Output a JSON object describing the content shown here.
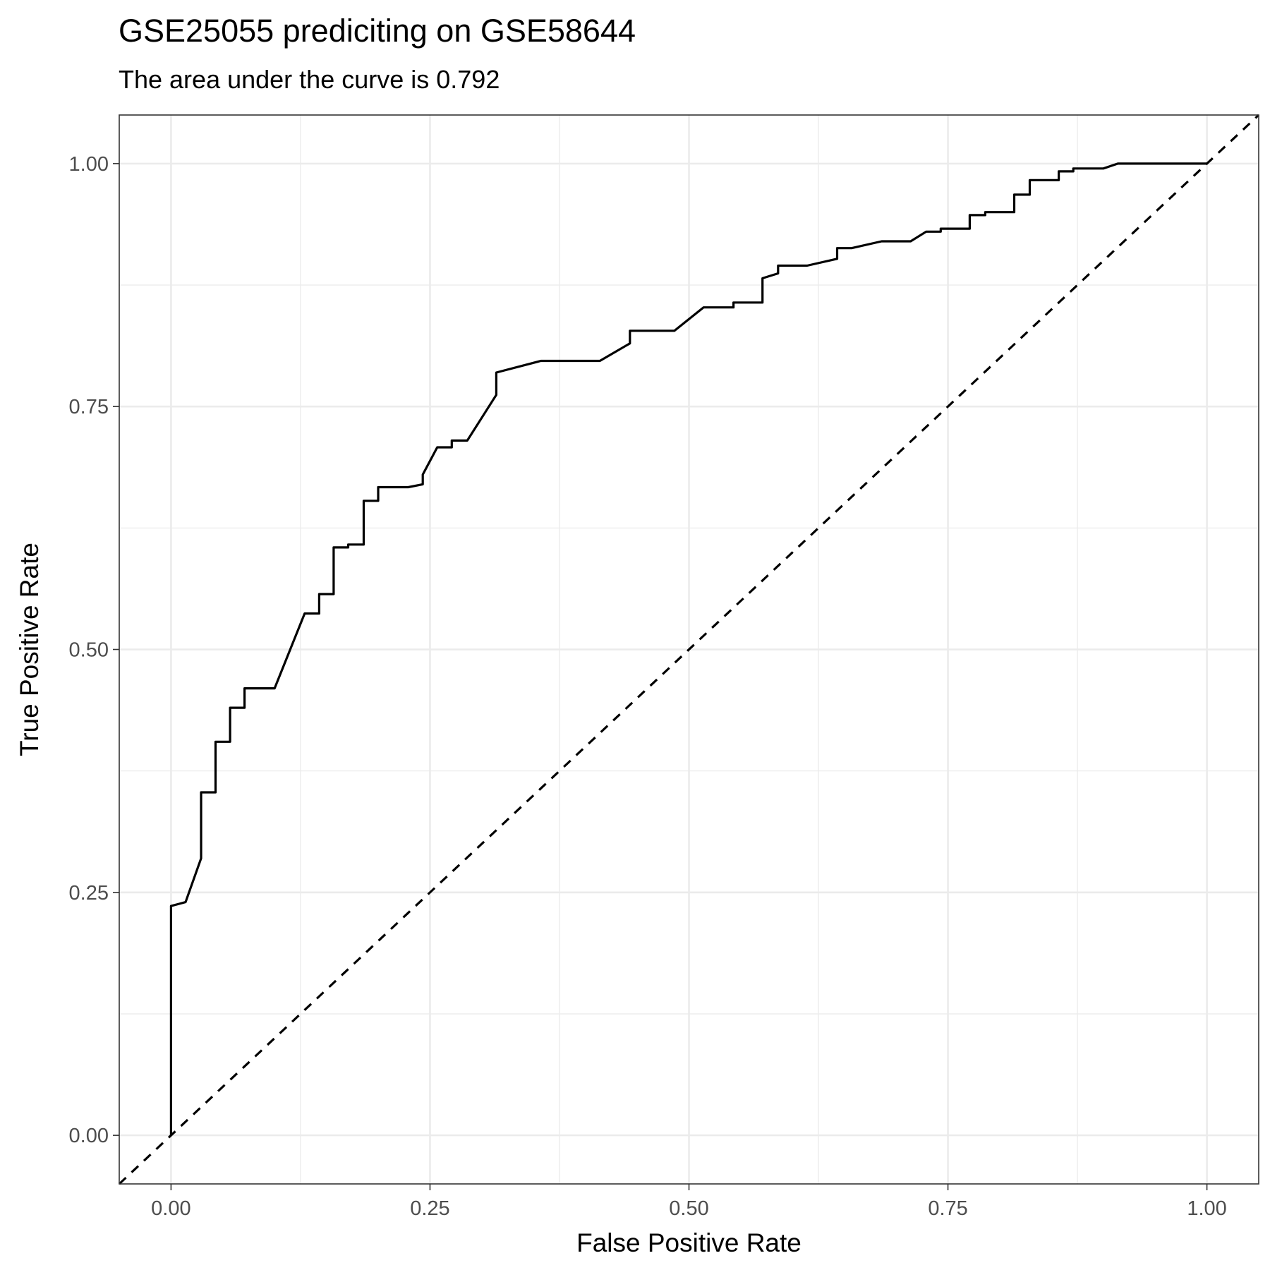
{
  "chart_data": {
    "type": "line",
    "title": "GSE25055 prediciting on GSE58644",
    "subtitle": "The area under the curve is 0.792",
    "xlabel": "False Positive Rate",
    "ylabel": "True Positive Rate",
    "xlim": [
      -0.05,
      1.05
    ],
    "ylim": [
      -0.05,
      1.05
    ],
    "x_ticks": [
      0.0,
      0.25,
      0.5,
      0.75,
      1.0
    ],
    "x_tick_labels": [
      "0.00",
      "0.25",
      "0.50",
      "0.75",
      "1.00"
    ],
    "y_ticks": [
      0.0,
      0.25,
      0.5,
      0.75,
      1.0
    ],
    "y_tick_labels": [
      "0.00",
      "0.25",
      "0.50",
      "0.75",
      "1.00"
    ],
    "minor_ticks": [
      0.125,
      0.375,
      0.625,
      0.875
    ],
    "grid": true,
    "series": [
      {
        "name": "ROC curve",
        "style": "solid",
        "color": "#000000",
        "points": [
          [
            0.0,
            0.0
          ],
          [
            0.0,
            0.236
          ],
          [
            0.014,
            0.24
          ],
          [
            0.029,
            0.285
          ],
          [
            0.029,
            0.353
          ],
          [
            0.043,
            0.353
          ],
          [
            0.043,
            0.405
          ],
          [
            0.057,
            0.405
          ],
          [
            0.057,
            0.44
          ],
          [
            0.071,
            0.44
          ],
          [
            0.071,
            0.46
          ],
          [
            0.1,
            0.46
          ],
          [
            0.129,
            0.537
          ],
          [
            0.143,
            0.537
          ],
          [
            0.143,
            0.557
          ],
          [
            0.157,
            0.557
          ],
          [
            0.157,
            0.605
          ],
          [
            0.171,
            0.605
          ],
          [
            0.171,
            0.608
          ],
          [
            0.186,
            0.608
          ],
          [
            0.186,
            0.653
          ],
          [
            0.2,
            0.653
          ],
          [
            0.2,
            0.667
          ],
          [
            0.229,
            0.667
          ],
          [
            0.243,
            0.67
          ],
          [
            0.243,
            0.68
          ],
          [
            0.257,
            0.708
          ],
          [
            0.271,
            0.708
          ],
          [
            0.271,
            0.715
          ],
          [
            0.286,
            0.715
          ],
          [
            0.314,
            0.762
          ],
          [
            0.314,
            0.785
          ],
          [
            0.357,
            0.797
          ],
          [
            0.414,
            0.797
          ],
          [
            0.443,
            0.815
          ],
          [
            0.443,
            0.828
          ],
          [
            0.486,
            0.828
          ],
          [
            0.514,
            0.852
          ],
          [
            0.543,
            0.852
          ],
          [
            0.543,
            0.857
          ],
          [
            0.571,
            0.857
          ],
          [
            0.571,
            0.882
          ],
          [
            0.586,
            0.887
          ],
          [
            0.586,
            0.895
          ],
          [
            0.614,
            0.895
          ],
          [
            0.643,
            0.902
          ],
          [
            0.643,
            0.913
          ],
          [
            0.657,
            0.913
          ],
          [
            0.686,
            0.92
          ],
          [
            0.714,
            0.92
          ],
          [
            0.729,
            0.93
          ],
          [
            0.743,
            0.93
          ],
          [
            0.743,
            0.933
          ],
          [
            0.771,
            0.933
          ],
          [
            0.771,
            0.947
          ],
          [
            0.786,
            0.947
          ],
          [
            0.786,
            0.95
          ],
          [
            0.814,
            0.95
          ],
          [
            0.814,
            0.968
          ],
          [
            0.829,
            0.968
          ],
          [
            0.829,
            0.983
          ],
          [
            0.857,
            0.983
          ],
          [
            0.857,
            0.992
          ],
          [
            0.871,
            0.992
          ],
          [
            0.871,
            0.995
          ],
          [
            0.9,
            0.995
          ],
          [
            0.914,
            1.0
          ],
          [
            1.0,
            1.0
          ]
        ]
      },
      {
        "name": "Chance line",
        "style": "dashed",
        "color": "#000000",
        "points": [
          [
            -0.05,
            -0.05
          ],
          [
            1.05,
            1.05
          ]
        ]
      }
    ]
  }
}
